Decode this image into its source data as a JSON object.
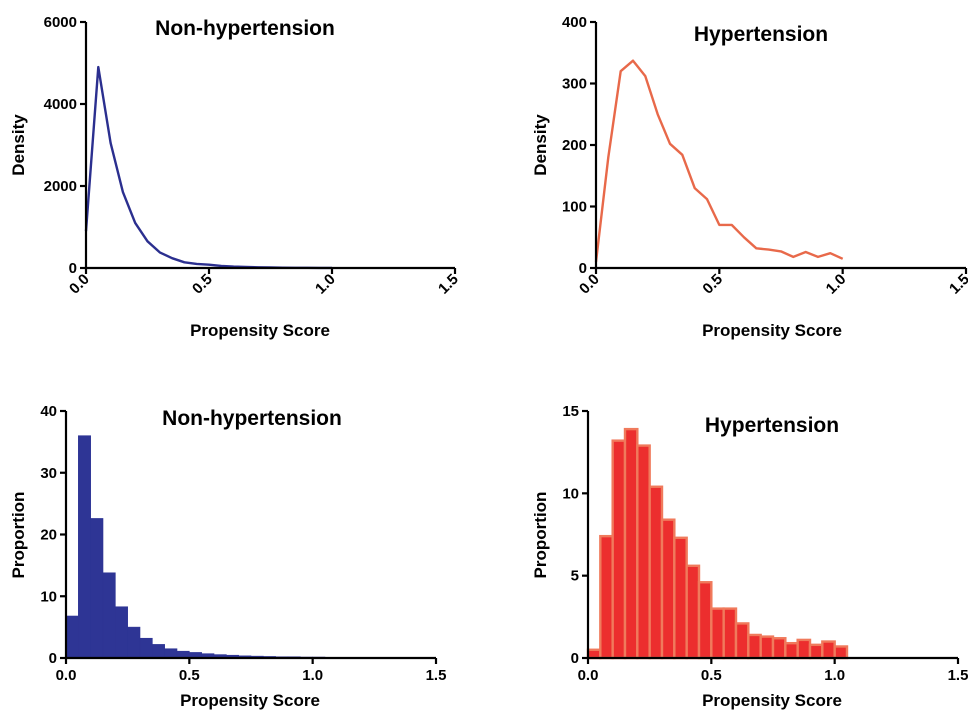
{
  "chart_data": [
    {
      "type": "line",
      "title": "Non-hypertension",
      "xlabel": "Propensity Score",
      "ylabel": "Density",
      "xlim": [
        0,
        1.5
      ],
      "ylim": [
        0,
        6000
      ],
      "xticks": [
        "0.0",
        "0.5",
        "1.0",
        "1.5"
      ],
      "yticks": [
        "0",
        "2000",
        "4000",
        "6000"
      ],
      "xtick_rotation": -45,
      "color": "#2b2f8f",
      "x": [
        0.0,
        0.05,
        0.1,
        0.15,
        0.2,
        0.25,
        0.3,
        0.35,
        0.4,
        0.45,
        0.5,
        0.55,
        0.6,
        0.65,
        0.7,
        0.75,
        0.8,
        0.85,
        0.9,
        0.95,
        1.0
      ],
      "y": [
        900,
        4900,
        3050,
        1850,
        1100,
        650,
        380,
        240,
        140,
        100,
        80,
        50,
        35,
        25,
        18,
        12,
        8,
        6,
        4,
        3,
        2
      ]
    },
    {
      "type": "line",
      "title": "Hypertension",
      "xlabel": "Propensity Score",
      "ylabel": "Density",
      "xlim": [
        0,
        1.5
      ],
      "ylim": [
        0,
        400
      ],
      "xticks": [
        "0.0",
        "0.5",
        "1.0",
        "1.5"
      ],
      "yticks": [
        "0",
        "100",
        "200",
        "300",
        "400"
      ],
      "xtick_rotation": -45,
      "color": "#e8694a",
      "x": [
        0.0,
        0.05,
        0.1,
        0.15,
        0.2,
        0.25,
        0.3,
        0.35,
        0.4,
        0.45,
        0.5,
        0.55,
        0.6,
        0.65,
        0.7,
        0.75,
        0.8,
        0.85,
        0.9,
        0.95,
        1.0
      ],
      "y": [
        10,
        180,
        320,
        337,
        312,
        250,
        202,
        184,
        130,
        112,
        70,
        70,
        50,
        32,
        30,
        27,
        18,
        26,
        18,
        24,
        15
      ]
    },
    {
      "type": "bar",
      "title": "Non-hypertension",
      "xlabel": "Propensity Score",
      "ylabel": "Proportion",
      "xlim": [
        0,
        1.5
      ],
      "ylim": [
        0,
        40
      ],
      "xticks": [
        "0.0",
        "0.5",
        "1.0",
        "1.5"
      ],
      "yticks": [
        "0",
        "10",
        "20",
        "30",
        "40"
      ],
      "bin_width": 0.05,
      "color": "#2e3595",
      "x": [
        0.0,
        0.05,
        0.1,
        0.15,
        0.2,
        0.25,
        0.3,
        0.35,
        0.4,
        0.45,
        0.5,
        0.55,
        0.6,
        0.65,
        0.7,
        0.75,
        0.8,
        0.85,
        0.9,
        0.95,
        1.0
      ],
      "values": [
        6.8,
        36.0,
        22.6,
        13.8,
        8.3,
        5.0,
        3.2,
        2.2,
        1.5,
        1.1,
        0.9,
        0.7,
        0.55,
        0.45,
        0.35,
        0.3,
        0.25,
        0.2,
        0.2,
        0.15,
        0.15
      ]
    },
    {
      "type": "bar",
      "title": "Hypertension",
      "xlabel": "Propensity Score",
      "ylabel": "Proportion",
      "xlim": [
        0,
        1.5
      ],
      "ylim": [
        0,
        15
      ],
      "xticks": [
        "0.0",
        "0.5",
        "1.0",
        "1.5"
      ],
      "yticks": [
        "0",
        "5",
        "10",
        "15"
      ],
      "bin_width": 0.05,
      "color": "#ec2e2e",
      "edge_color": "#f07a5c",
      "x": [
        0.0,
        0.05,
        0.1,
        0.15,
        0.2,
        0.25,
        0.3,
        0.35,
        0.4,
        0.45,
        0.5,
        0.55,
        0.6,
        0.65,
        0.7,
        0.75,
        0.8,
        0.85,
        0.9,
        0.95,
        1.0
      ],
      "values": [
        0.5,
        7.4,
        13.2,
        13.9,
        12.9,
        10.4,
        8.4,
        7.3,
        5.6,
        4.6,
        3.0,
        3.0,
        2.1,
        1.4,
        1.3,
        1.2,
        0.9,
        1.1,
        0.8,
        1.0,
        0.7
      ]
    }
  ]
}
